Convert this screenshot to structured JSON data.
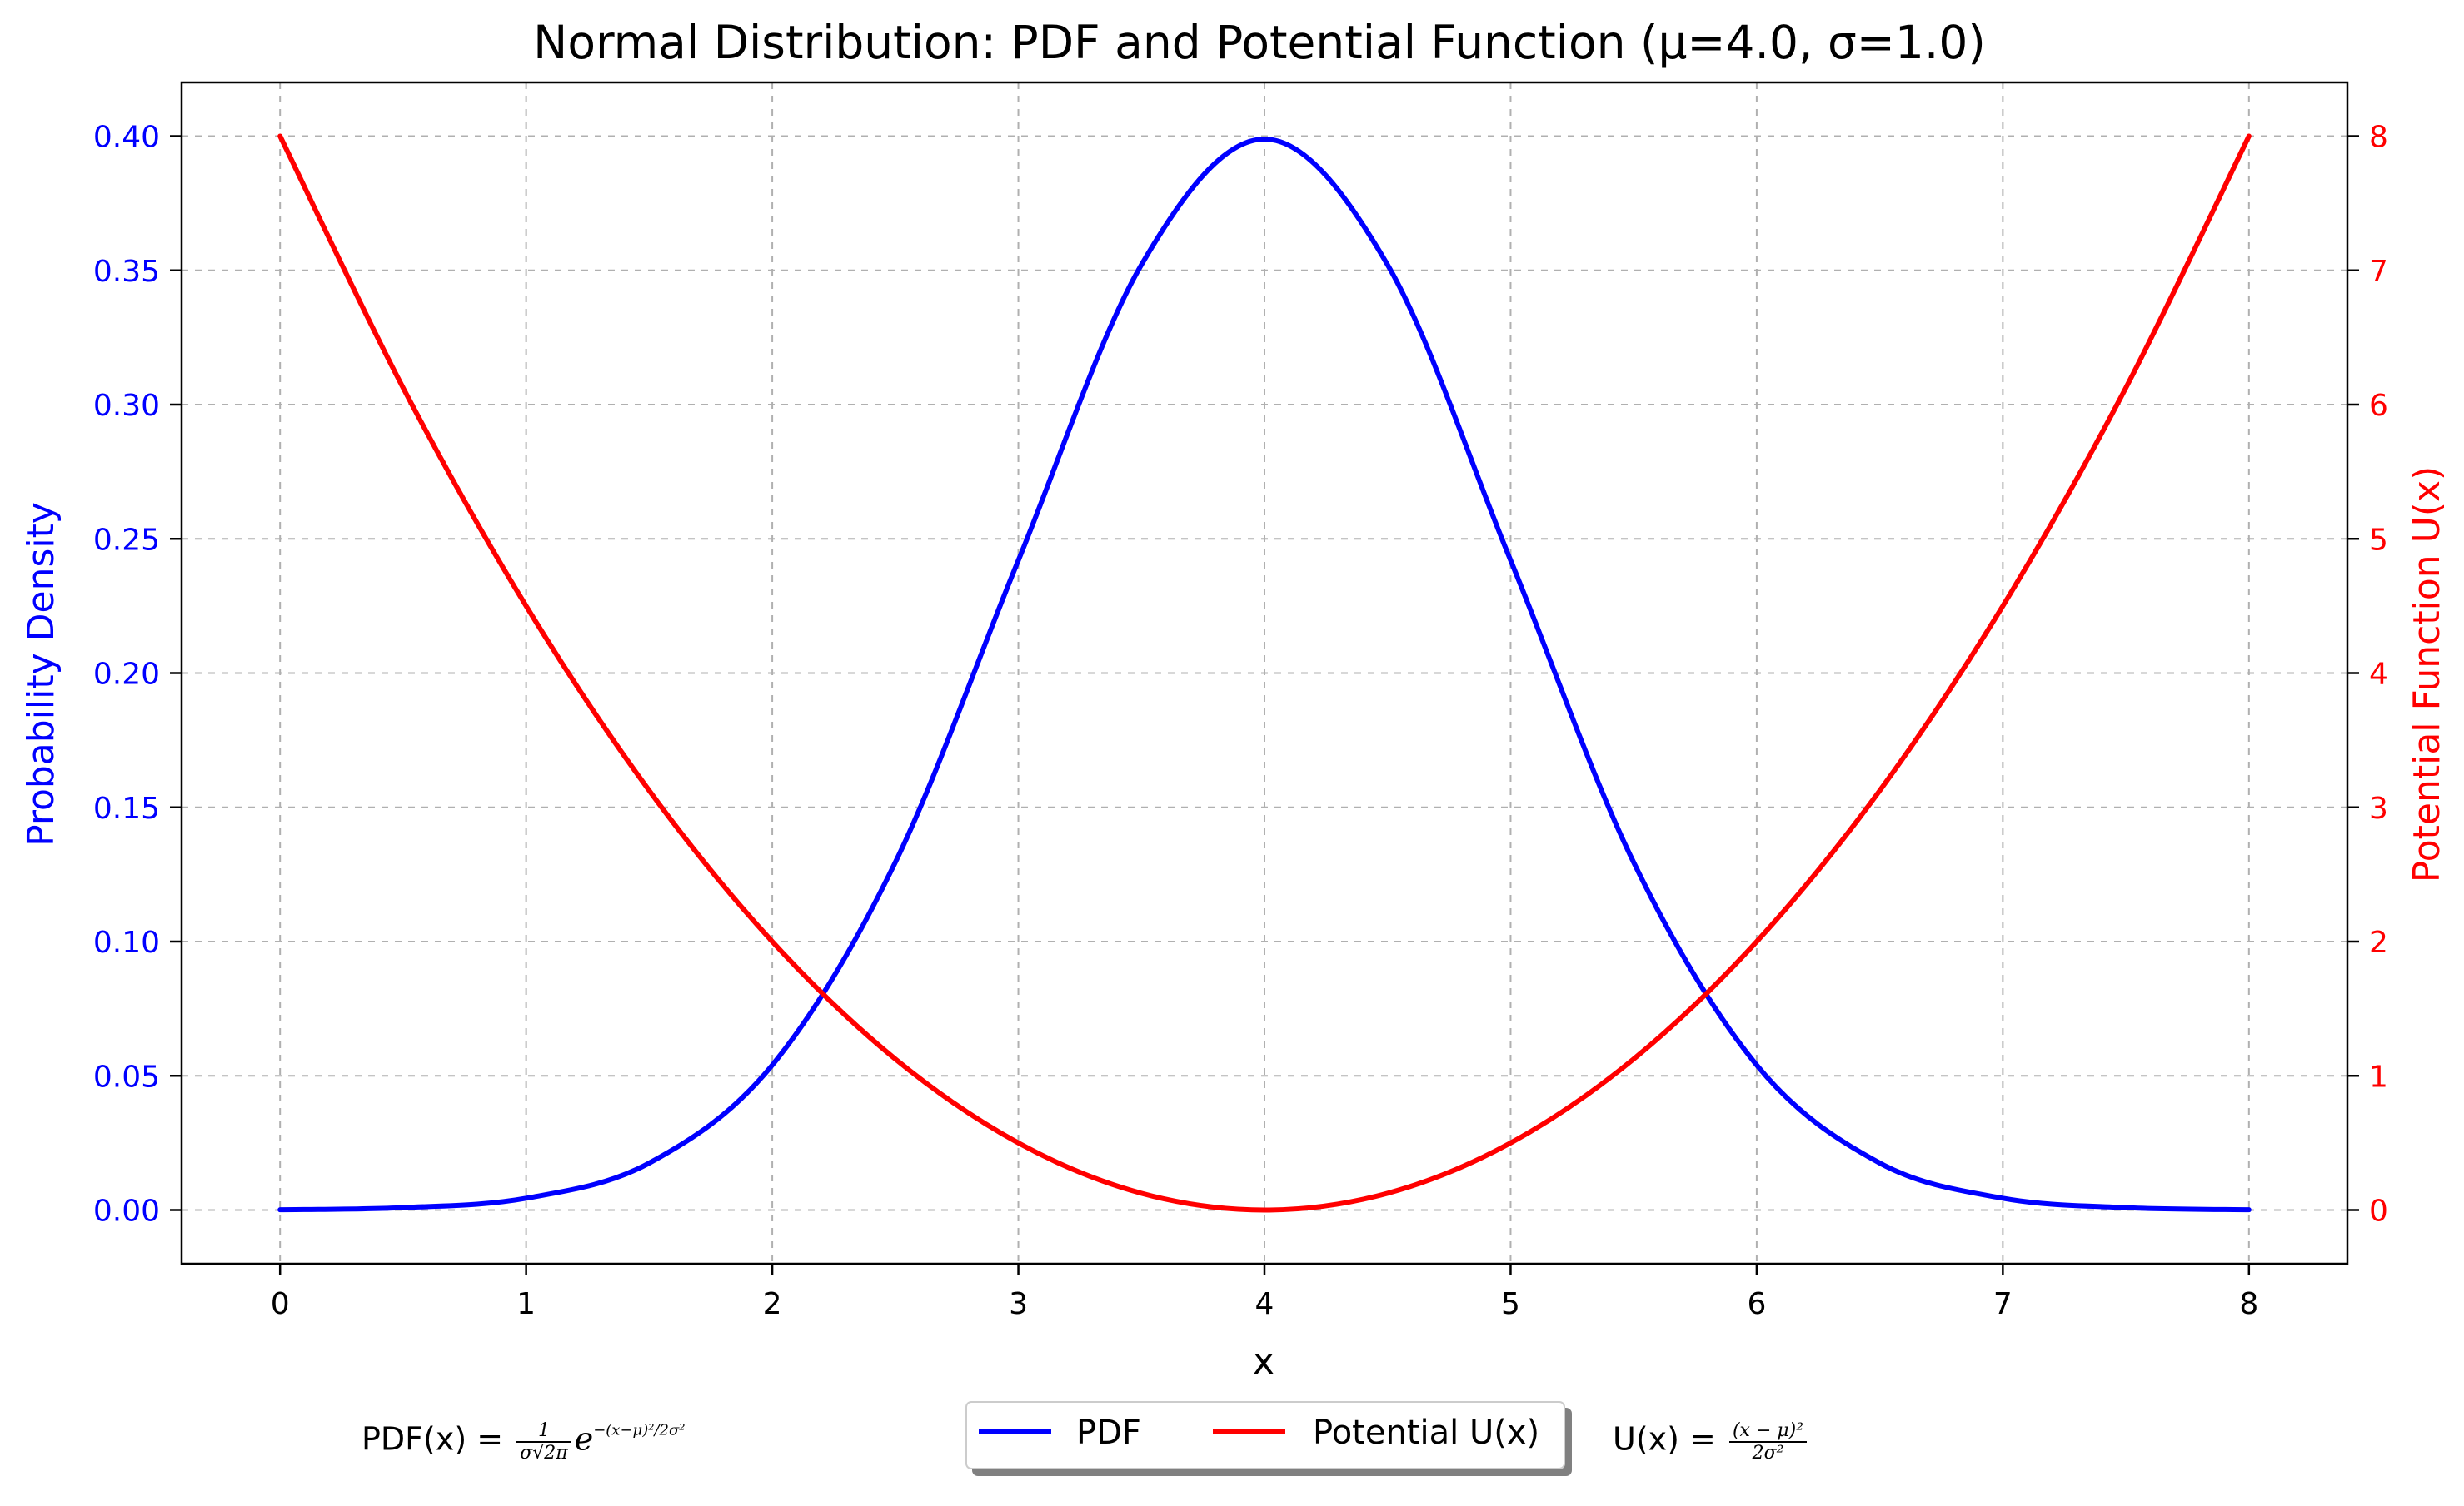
{
  "chart_data": {
    "type": "line",
    "title": "Normal Distribution: PDF and Potential Function (μ=4.0, σ=1.0)",
    "xlabel": "x",
    "ylabel_left": "Probability Density",
    "ylabel_right": "Potential Function U(x)",
    "xlim": [
      -0.4,
      8.4
    ],
    "ylim_left": [
      -0.02,
      0.42
    ],
    "ylim_right": [
      -0.4,
      8.4
    ],
    "x_ticks": [
      0,
      1,
      2,
      3,
      4,
      5,
      6,
      7,
      8
    ],
    "x_tick_labels": [
      "0",
      "1",
      "2",
      "3",
      "4",
      "5",
      "6",
      "7",
      "8"
    ],
    "y_left_ticks": [
      0.0,
      0.05,
      0.1,
      0.15,
      0.2,
      0.25,
      0.3,
      0.35,
      0.4
    ],
    "y_left_tick_labels": [
      "0.00",
      "0.05",
      "0.10",
      "0.15",
      "0.20",
      "0.25",
      "0.30",
      "0.35",
      "0.40"
    ],
    "y_right_ticks": [
      0,
      1,
      2,
      3,
      4,
      5,
      6,
      7,
      8
    ],
    "y_right_tick_labels": [
      "0",
      "1",
      "2",
      "3",
      "4",
      "5",
      "6",
      "7",
      "8"
    ],
    "grid": true,
    "legend_position": "bottom-center",
    "series": [
      {
        "name": "PDF",
        "axis": "left",
        "color": "#0000ff",
        "x": [
          0,
          0.5,
          1,
          1.5,
          2,
          2.5,
          3,
          3.5,
          4,
          4.5,
          5,
          5.5,
          6,
          6.5,
          7,
          7.5,
          8
        ],
        "values": [
          0.0001,
          0.0009,
          0.0044,
          0.0175,
          0.054,
          0.1295,
          0.242,
          0.3521,
          0.3989,
          0.3521,
          0.242,
          0.1295,
          0.054,
          0.0175,
          0.0044,
          0.0009,
          0.0001
        ]
      },
      {
        "name": "Potential U(x)",
        "axis": "right",
        "color": "#ff0000",
        "x": [
          0,
          0.5,
          1,
          1.5,
          2,
          2.5,
          3,
          3.5,
          4,
          4.5,
          5,
          5.5,
          6,
          6.5,
          7,
          7.5,
          8
        ],
        "values": [
          8,
          6.125,
          4.5,
          3.125,
          2,
          1.125,
          0.5,
          0.125,
          0,
          0.125,
          0.5,
          1.125,
          2,
          3.125,
          4.5,
          6.125,
          8
        ]
      }
    ],
    "annotations": {
      "pdf_formula_label": "PDF(x) =",
      "pdf_formula_num": "1",
      "pdf_formula_den": "σ√2π",
      "pdf_formula_base": "e",
      "pdf_formula_exp": "−(x−μ)²/2σ²",
      "u_formula_label": "U(x) =",
      "u_formula_num": "(x − μ)²",
      "u_formula_den": "2σ²"
    }
  }
}
